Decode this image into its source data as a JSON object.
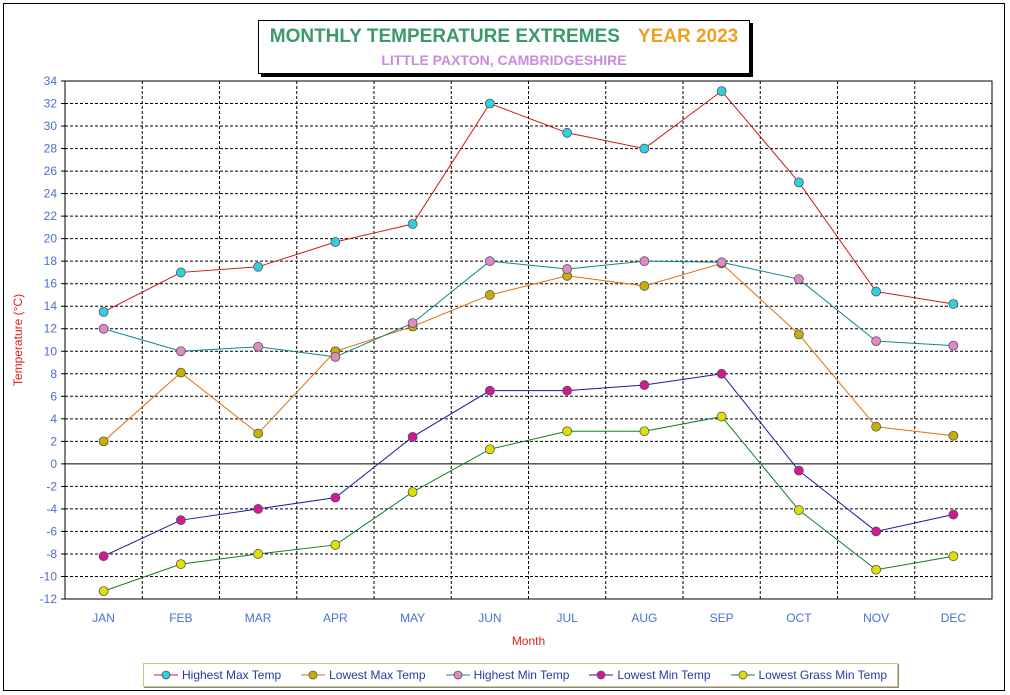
{
  "title": {
    "main": "MONTHLY TEMPERATURE EXTREMES",
    "year": "YEAR  2023",
    "subtitle": "LITTLE PAXTON, CAMBRIDGESHIRE"
  },
  "chart_data": {
    "type": "line",
    "xlabel": "Month",
    "ylabel": "Temperature (°C)",
    "categories": [
      "JAN",
      "FEB",
      "MAR",
      "APR",
      "MAY",
      "JUN",
      "JUL",
      "AUG",
      "SEP",
      "OCT",
      "NOV",
      "DEC"
    ],
    "ylim": [
      -12,
      34
    ],
    "yticks": [
      "34",
      "32",
      "30",
      "28",
      "26",
      "24",
      "22",
      "20",
      "18",
      "16",
      "14",
      "12",
      "10",
      "8",
      "6",
      "4",
      "2",
      "0",
      "-2",
      "-4",
      "-6",
      "-8",
      "-10",
      "-12"
    ],
    "grid": true,
    "legend_position": "bottom",
    "series": [
      {
        "name": "Highest Max Temp",
        "line_color": "#d01818",
        "marker_color": "#30d0e0",
        "values": [
          13.5,
          17.0,
          17.5,
          19.7,
          21.3,
          32.0,
          29.4,
          28.0,
          33.1,
          25.0,
          15.3,
          14.2
        ]
      },
      {
        "name": "Lowest Max Temp",
        "line_color": "#e07010",
        "marker_color": "#c8b000",
        "values": [
          2.0,
          8.1,
          2.7,
          10.0,
          12.2,
          15.0,
          16.7,
          15.8,
          17.8,
          11.5,
          3.3,
          2.5
        ]
      },
      {
        "name": "Highest Min Temp",
        "line_color": "#108888",
        "marker_color": "#e088c8",
        "values": [
          12.0,
          10.0,
          10.4,
          9.5,
          12.5,
          18.0,
          17.3,
          18.0,
          17.9,
          16.4,
          10.9,
          10.5
        ]
      },
      {
        "name": "Lowest Min Temp",
        "line_color": "#1a1aa0",
        "marker_color": "#d01898",
        "values": [
          -8.2,
          -5.0,
          -4.0,
          -3.0,
          2.4,
          6.5,
          6.5,
          7.0,
          8.0,
          -0.6,
          -6.0,
          -4.5
        ]
      },
      {
        "name": "Lowest Grass Min Temp",
        "line_color": "#108020",
        "marker_color": "#e0e000",
        "values": [
          -11.3,
          -8.9,
          -8.0,
          -7.2,
          -2.5,
          1.3,
          2.9,
          2.9,
          4.2,
          -4.1,
          -9.4,
          -8.2
        ]
      }
    ]
  }
}
